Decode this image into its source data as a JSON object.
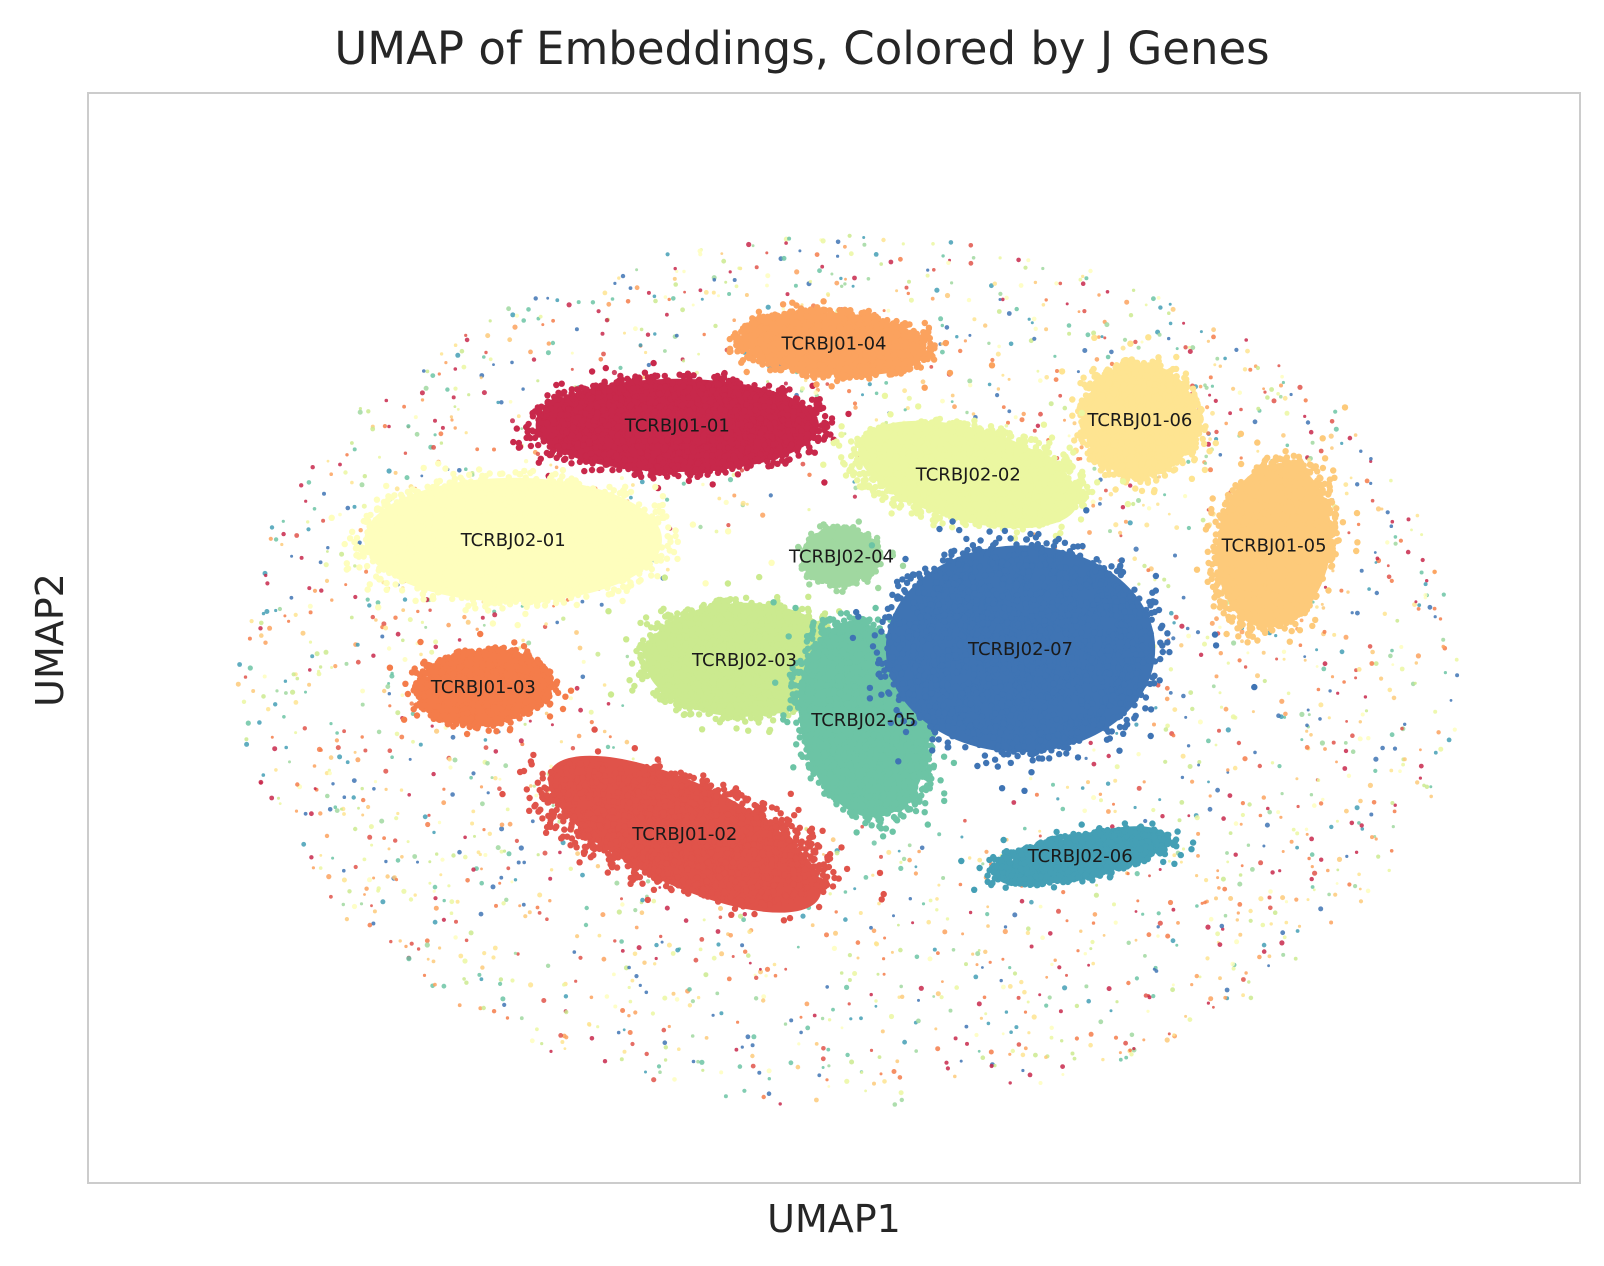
{
  "chart_data": {
    "type": "scatter",
    "title": "UMAP of Embeddings, Colored by J Genes",
    "xlabel": "UMAP1",
    "ylabel": "UMAP2",
    "xticks": [],
    "yticks": [],
    "grid": false,
    "legend": "none",
    "xlim": [
      -10,
      10
    ],
    "ylim": [
      -10,
      10
    ],
    "clusters": [
      {
        "name": "TCRBJ01-01",
        "color": "#c8284b",
        "center": [
          -2.1,
          3.9
        ],
        "spread": [
          2.0,
          0.9
        ],
        "angle": 0
      },
      {
        "name": "TCRBJ01-02",
        "color": "#e0534a",
        "center": [
          -2.0,
          -3.6
        ],
        "spread": [
          2.1,
          1.0
        ],
        "angle": -25
      },
      {
        "name": "TCRBJ01-03",
        "color": "#f47c4a",
        "center": [
          -4.7,
          -0.9
        ],
        "spread": [
          0.9,
          0.7
        ],
        "angle": 10
      },
      {
        "name": "TCRBJ01-04",
        "color": "#fba25e",
        "center": [
          0.0,
          5.4
        ],
        "spread": [
          1.3,
          0.6
        ],
        "angle": -5
      },
      {
        "name": "TCRBJ01-05",
        "color": "#fdca7a",
        "center": [
          5.9,
          1.7
        ],
        "spread": [
          0.8,
          1.6
        ],
        "angle": -8
      },
      {
        "name": "TCRBJ01-06",
        "color": "#fee491",
        "center": [
          4.1,
          4.0
        ],
        "spread": [
          0.8,
          1.1
        ],
        "angle": 0
      },
      {
        "name": "TCRBJ02-01",
        "color": "#fefebd",
        "center": [
          -4.3,
          1.8
        ],
        "spread": [
          2.1,
          1.2
        ],
        "angle": 0
      },
      {
        "name": "TCRBJ02-02",
        "color": "#ebf7a1",
        "center": [
          1.8,
          3.0
        ],
        "spread": [
          1.6,
          0.9
        ],
        "angle": -15
      },
      {
        "name": "TCRBJ02-03",
        "color": "#cbea8f",
        "center": [
          -1.2,
          -0.4
        ],
        "spread": [
          1.4,
          1.1
        ],
        "angle": 0
      },
      {
        "name": "TCRBJ02-04",
        "color": "#a0d8a0",
        "center": [
          0.1,
          1.5
        ],
        "spread": [
          0.5,
          0.5
        ],
        "angle": 0
      },
      {
        "name": "TCRBJ02-05",
        "color": "#6cc4a5",
        "center": [
          0.4,
          -1.5
        ],
        "spread": [
          0.9,
          1.9
        ],
        "angle": 10
      },
      {
        "name": "TCRBJ02-06",
        "color": "#449fb5",
        "center": [
          3.3,
          -4.0
        ],
        "spread": [
          1.2,
          0.4
        ],
        "angle": 15
      },
      {
        "name": "TCRBJ02-07",
        "color": "#3f74b4",
        "center": [
          2.5,
          -0.2
        ],
        "spread": [
          1.9,
          2.0
        ],
        "angle": 0
      }
    ]
  }
}
